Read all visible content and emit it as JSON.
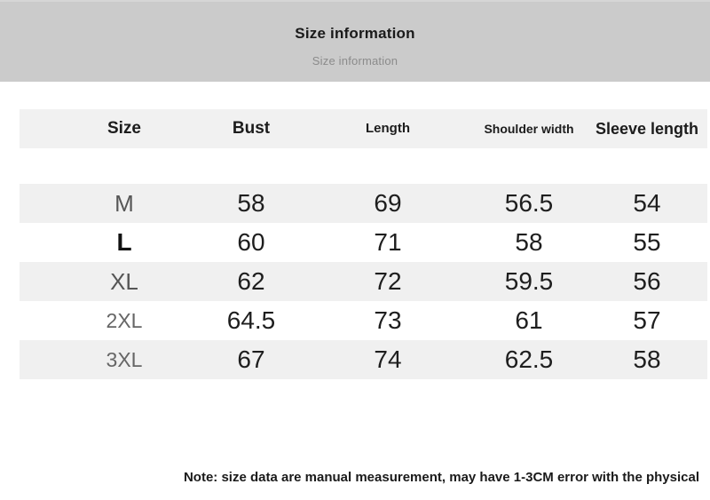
{
  "header": {
    "title": "Size information",
    "subtitle": "Size information"
  },
  "table": {
    "columns": [
      "Size",
      "Bust",
      "Length",
      "Shoulder width",
      "Sleeve length"
    ],
    "rows": [
      {
        "size": "M",
        "bust": "58",
        "length": "69",
        "shoulder_width": "56.5",
        "sleeve_length": "54"
      },
      {
        "size": "L",
        "bust": "60",
        "length": "71",
        "shoulder_width": "58",
        "sleeve_length": "55"
      },
      {
        "size": "XL",
        "bust": "62",
        "length": "72",
        "shoulder_width": "59.5",
        "sleeve_length": "56"
      },
      {
        "size": "2XL",
        "bust": "64.5",
        "length": "73",
        "shoulder_width": "61",
        "sleeve_length": "57"
      },
      {
        "size": "3XL",
        "bust": "67",
        "length": "74",
        "shoulder_width": "62.5",
        "sleeve_length": "58"
      }
    ]
  },
  "note": "Note: size data are manual measurement, may have 1-3CM error with the physical",
  "colors": {
    "banner_bg": "#cbcbcb",
    "band_bg": "#f0f0f0",
    "text_primary": "#1c1c1c",
    "text_muted": "#8b8b8b"
  }
}
